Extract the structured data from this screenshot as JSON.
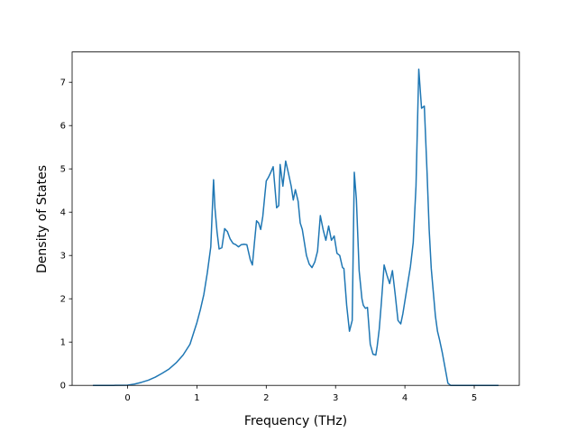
{
  "chart_data": {
    "type": "line",
    "xlabel": "Frequency (THz)",
    "ylabel": "Density of States",
    "xlim": [
      -0.8,
      5.65
    ],
    "ylim": [
      0,
      7.7
    ],
    "x_ticks": [
      0,
      1,
      2,
      3,
      4,
      5
    ],
    "y_ticks": [
      0,
      1,
      2,
      3,
      4,
      5,
      6,
      7
    ],
    "x_tick_labels": [
      "0",
      "1",
      "2",
      "3",
      "4",
      "5"
    ],
    "y_tick_labels": [
      "0",
      "1",
      "2",
      "3",
      "4",
      "5",
      "6",
      "7"
    ],
    "grid": false,
    "series": [
      {
        "color": "#1f77b4",
        "x": [
          -0.5,
          -0.2,
          0.0,
          0.1,
          0.2,
          0.3,
          0.4,
          0.5,
          0.6,
          0.7,
          0.8,
          0.9,
          0.95,
          1.0,
          1.05,
          1.1,
          1.15,
          1.2,
          1.24,
          1.26,
          1.29,
          1.32,
          1.36,
          1.4,
          1.44,
          1.48,
          1.52,
          1.56,
          1.6,
          1.64,
          1.68,
          1.72,
          1.77,
          1.8,
          1.83,
          1.86,
          1.89,
          1.92,
          1.95,
          1.98,
          2.0,
          2.03,
          2.06,
          2.1,
          2.15,
          2.18,
          2.2,
          2.24,
          2.28,
          2.32,
          2.36,
          2.39,
          2.42,
          2.46,
          2.49,
          2.52,
          2.55,
          2.58,
          2.62,
          2.66,
          2.7,
          2.74,
          2.78,
          2.82,
          2.86,
          2.9,
          2.94,
          2.98,
          3.02,
          3.06,
          3.1,
          3.12,
          3.16,
          3.2,
          3.24,
          3.27,
          3.3,
          3.34,
          3.38,
          3.4,
          3.43,
          3.46,
          3.5,
          3.54,
          3.58,
          3.6,
          3.63,
          3.66,
          3.7,
          3.74,
          3.78,
          3.82,
          3.86,
          3.9,
          3.94,
          3.97,
          4.0,
          4.04,
          4.08,
          4.12,
          4.16,
          4.2,
          4.24,
          4.28,
          4.32,
          4.35,
          4.38,
          4.41,
          4.44,
          4.47,
          4.5,
          4.54,
          4.58,
          4.62,
          4.66,
          4.7,
          4.74,
          4.78,
          4.82,
          4.86,
          4.88,
          4.9,
          5.0,
          5.35
        ],
        "y": [
          0,
          0,
          0.005,
          0.03,
          0.07,
          0.12,
          0.19,
          0.28,
          0.38,
          0.52,
          0.7,
          0.95,
          1.2,
          1.45,
          1.75,
          2.1,
          2.6,
          3.2,
          4.75,
          4.1,
          3.55,
          3.15,
          3.18,
          3.62,
          3.55,
          3.38,
          3.28,
          3.25,
          3.2,
          3.25,
          3.26,
          3.25,
          2.9,
          2.78,
          3.3,
          3.8,
          3.75,
          3.6,
          3.9,
          4.4,
          4.72,
          4.8,
          4.9,
          5.05,
          4.1,
          4.15,
          5.1,
          4.6,
          5.18,
          4.9,
          4.6,
          4.28,
          4.52,
          4.25,
          3.75,
          3.6,
          3.3,
          3.0,
          2.8,
          2.72,
          2.85,
          3.1,
          3.92,
          3.6,
          3.35,
          3.68,
          3.35,
          3.45,
          3.05,
          3.0,
          2.72,
          2.7,
          1.85,
          1.25,
          1.5,
          4.92,
          4.3,
          2.65,
          2.0,
          1.85,
          1.78,
          1.8,
          0.95,
          0.72,
          0.7,
          0.9,
          1.3,
          1.9,
          2.78,
          2.55,
          2.35,
          2.65,
          2.1,
          1.5,
          1.42,
          1.65,
          1.95,
          2.35,
          2.75,
          3.3,
          4.6,
          7.3,
          6.4,
          6.45,
          4.9,
          3.6,
          2.7,
          2.15,
          1.6,
          1.25,
          1.05,
          0.75,
          0.4,
          0.05,
          0,
          0,
          0,
          0,
          0,
          0,
          0,
          0,
          0,
          0
        ],
        "x_trim_note": ""
      }
    ]
  }
}
